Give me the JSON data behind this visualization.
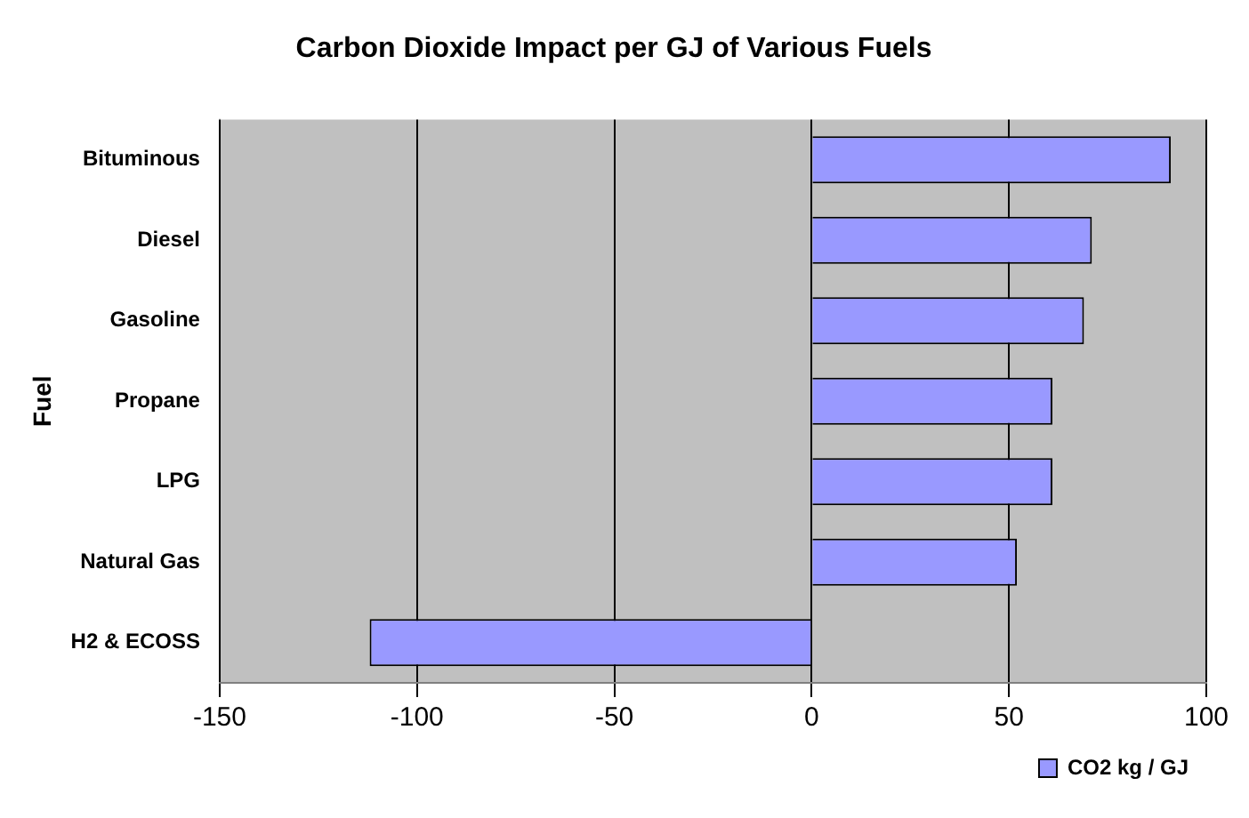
{
  "chart_data": {
    "type": "bar",
    "orientation": "horizontal",
    "title": "Carbon Dioxide Impact per GJ of Various Fuels",
    "ylabel": "Fuel",
    "categories": [
      "Bituminous",
      "Diesel",
      "Gasoline",
      "Propane",
      "LPG",
      "Natural Gas",
      "H2 & ECOSS"
    ],
    "series": [
      {
        "name": "CO2 kg / GJ",
        "color": "#9999ff",
        "values": [
          91,
          71,
          69,
          61,
          61,
          52,
          -112
        ]
      }
    ],
    "xlim": [
      -150,
      100
    ],
    "xticks": [
      -150,
      -100,
      -50,
      0,
      50,
      100
    ],
    "grid": "x",
    "legend": "bottom right"
  }
}
